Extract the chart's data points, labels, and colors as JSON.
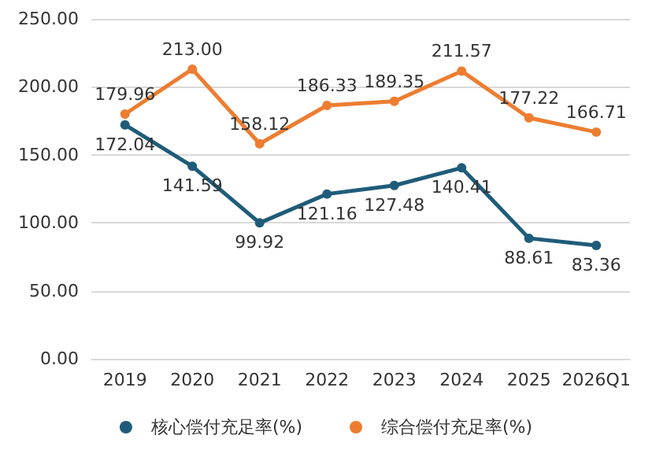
{
  "chart_data": {
    "type": "line",
    "categories": [
      "2019",
      "2020",
      "2021",
      "2022",
      "2023",
      "2024",
      "2025",
      "2026Q1"
    ],
    "series": [
      {
        "name": "核心偿付充足率(%)",
        "color": "#1f5c7a",
        "values": [
          172.04,
          141.59,
          99.92,
          121.16,
          127.48,
          140.41,
          88.61,
          83.36
        ],
        "value_labels": [
          "172.04",
          "141.59",
          "99.92",
          "121.16",
          "127.48",
          "140.41",
          "88.61",
          "83.36"
        ]
      },
      {
        "name": "综合偿付充足率(%)",
        "color": "#ed7d31",
        "values": [
          179.96,
          213.0,
          158.12,
          186.33,
          189.35,
          211.57,
          177.22,
          166.71
        ],
        "value_labels": [
          "179.96",
          "213.00",
          "158.12",
          "186.33",
          "189.35",
          "211.57",
          "177.22",
          "166.71"
        ]
      }
    ],
    "ylim": [
      0,
      250
    ],
    "yticks": [
      {
        "value": 0,
        "label": "0.00"
      },
      {
        "value": 50,
        "label": "50.00"
      },
      {
        "value": 100,
        "label": "100.00"
      },
      {
        "value": 150,
        "label": "150.00"
      },
      {
        "value": 200,
        "label": "200.00"
      },
      {
        "value": 250,
        "label": "250.00"
      }
    ],
    "grid": "y",
    "legend": "bottom",
    "marker": "circle",
    "line_style": "solid"
  }
}
